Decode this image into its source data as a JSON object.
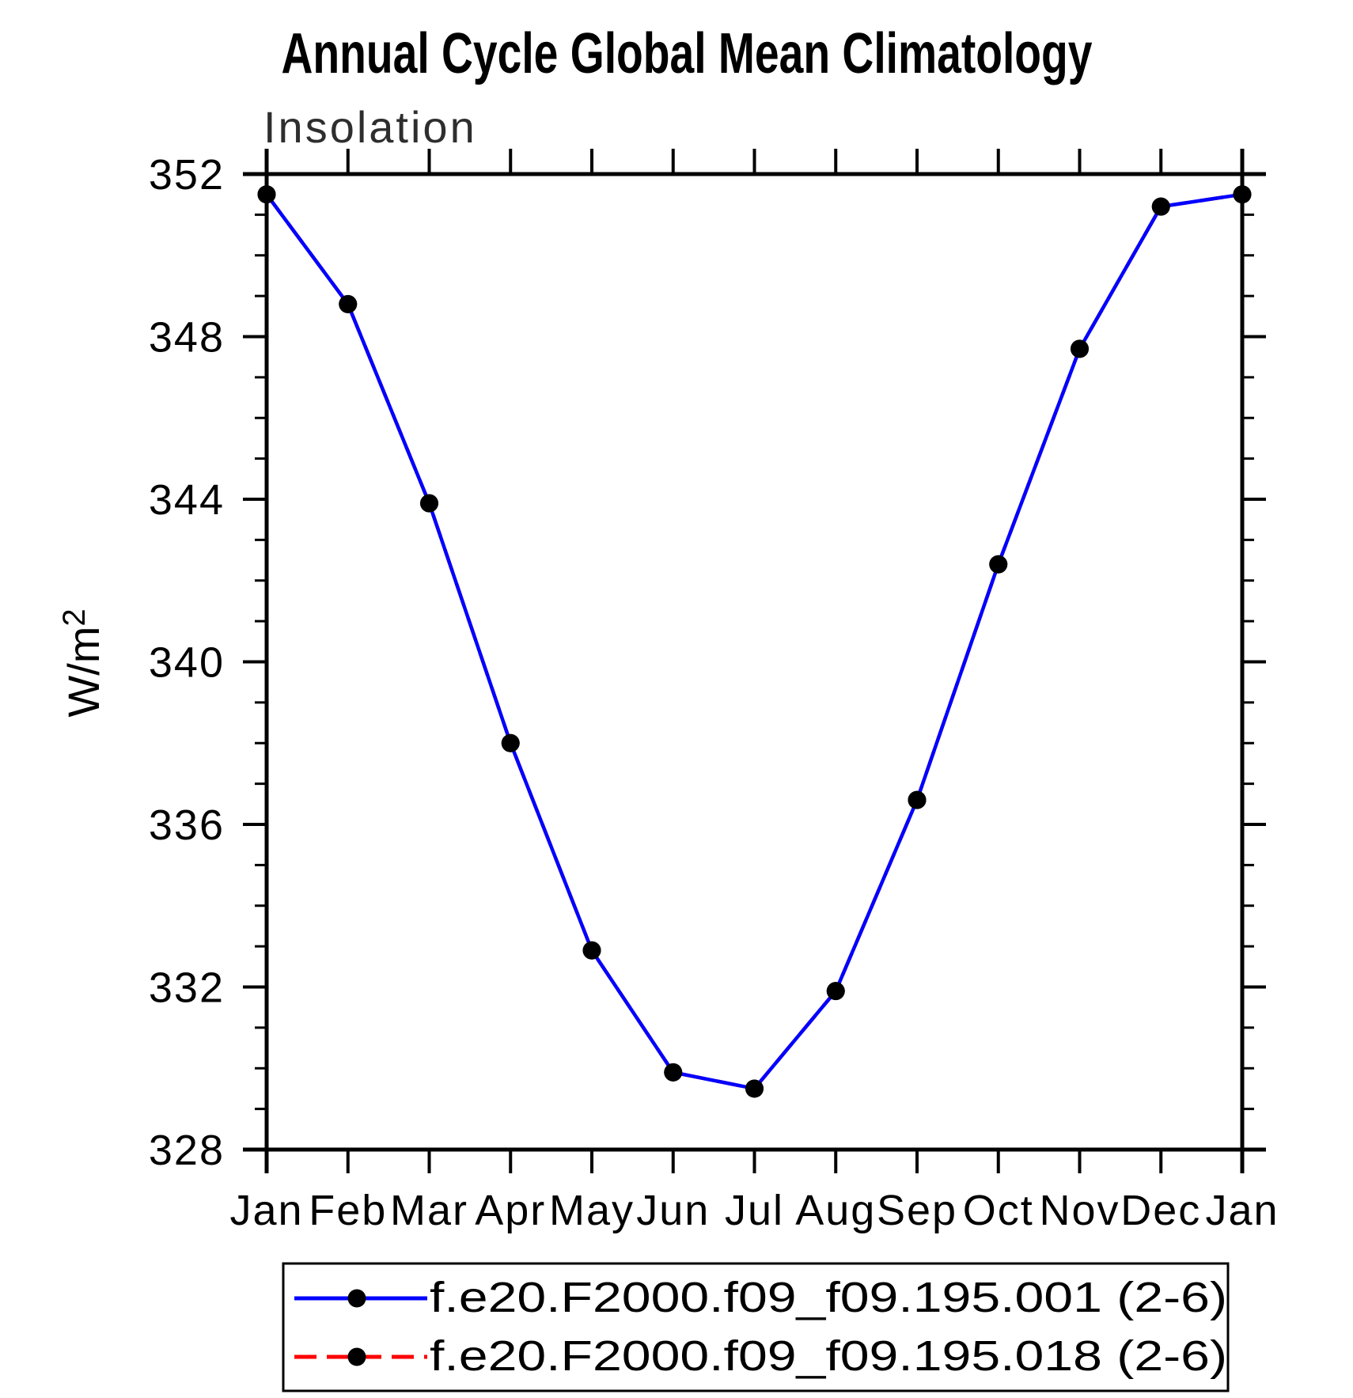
{
  "page": {
    "background": "#ffffff"
  },
  "header": {
    "title": "Annual Cycle Global Mean Climatology"
  },
  "chart_data": {
    "type": "line",
    "title": "Annual Cycle Global Mean Climatology",
    "panel_label": "Insolation",
    "ylabel": "W/m²",
    "xlabel": "",
    "x_categories": [
      "Jan",
      "Feb",
      "Mar",
      "Apr",
      "May",
      "Jun",
      "Jul",
      "Aug",
      "Sep",
      "Oct",
      "Nov",
      "Dec",
      "Jan"
    ],
    "ylim": [
      328,
      352
    ],
    "ytick_step": 4,
    "yminor_step": 1,
    "grid": false,
    "legend_position": "bottom",
    "axis_color": "#000000",
    "series": [
      {
        "name": "f.e20.F2000.f09_f09.195.001 (2-6)",
        "color": "#0000ff",
        "line_style": "solid",
        "marker": "filled-circle",
        "marker_color": "#000000",
        "values": [
          351.5,
          348.8,
          343.9,
          338.0,
          332.9,
          329.9,
          329.5,
          331.9,
          336.6,
          342.4,
          347.7,
          351.2,
          351.5
        ]
      },
      {
        "name": "f.e20.F2000.f09_f09.195.018 (2-6)",
        "color": "#ff0000",
        "line_style": "dashed",
        "marker": "filled-circle",
        "marker_color": "#000000",
        "values": [
          351.5,
          348.8,
          343.9,
          338.0,
          332.9,
          329.9,
          329.5,
          331.9,
          336.6,
          342.4,
          347.7,
          351.2,
          351.5
        ]
      }
    ]
  }
}
